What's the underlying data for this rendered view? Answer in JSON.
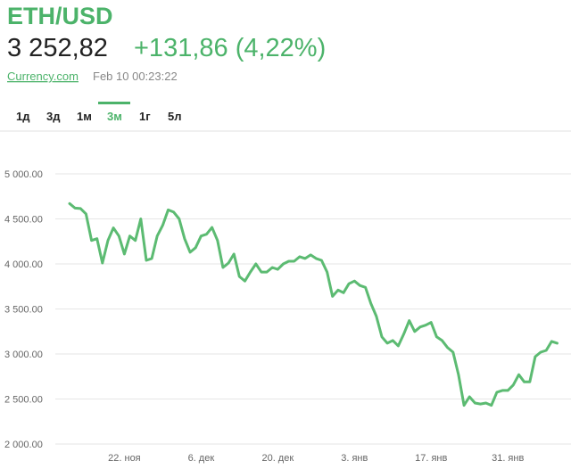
{
  "header": {
    "title": "ETH/USD",
    "price": "3 252,82",
    "change": "+131,86 (4,22%)",
    "source": "Currency.com",
    "timestamp": "Feb 10 00:23:22"
  },
  "tabs": [
    "1д",
    "3д",
    "1м",
    "3м",
    "1г",
    "5л"
  ],
  "chart_data": {
    "type": "line",
    "categories": [
      null,
      null,
      null,
      null,
      null,
      null,
      null,
      null,
      null,
      null,
      "22. ноя",
      null,
      null,
      null,
      null,
      null,
      null,
      null,
      null,
      null,
      null,
      null,
      null,
      null,
      "6. дек",
      null,
      null,
      null,
      null,
      null,
      null,
      null,
      null,
      null,
      null,
      null,
      null,
      null,
      "20. дек",
      null,
      null,
      null,
      null,
      null,
      null,
      null,
      null,
      null,
      null,
      null,
      null,
      null,
      "3. янв",
      null,
      null,
      null,
      null,
      null,
      null,
      null,
      null,
      null,
      null,
      null,
      null,
      null,
      "17. янв",
      null,
      null,
      null,
      null,
      null,
      null,
      null,
      null,
      null,
      null,
      null,
      null,
      null,
      "31. янв",
      null,
      null,
      null,
      null,
      null,
      null,
      null,
      null,
      null
    ],
    "values": [
      4670,
      4620,
      4615,
      4555,
      4260,
      4280,
      4010,
      4260,
      4400,
      4310,
      4110,
      4310,
      4260,
      4500,
      4040,
      4060,
      4310,
      4430,
      4600,
      4575,
      4500,
      4280,
      4130,
      4180,
      4310,
      4330,
      4405,
      4260,
      3960,
      4010,
      4110,
      3860,
      3810,
      3910,
      4000,
      3910,
      3910,
      3960,
      3940,
      4000,
      4030,
      4030,
      4080,
      4060,
      4100,
      4060,
      4040,
      3910,
      3640,
      3710,
      3680,
      3780,
      3810,
      3760,
      3740,
      3560,
      3420,
      3190,
      3120,
      3150,
      3090,
      3220,
      3370,
      3250,
      3300,
      3320,
      3350,
      3190,
      3150,
      3070,
      3020,
      2770,
      2430,
      2525,
      2455,
      2445,
      2455,
      2430,
      2575,
      2595,
      2595,
      2655,
      2770,
      2690,
      2690,
      2970,
      3020,
      3040,
      3140,
      3120
    ],
    "color": "#5cbb72",
    "ylim": [
      2000,
      5000
    ],
    "yticks": [
      {
        "value": 2000,
        "label": "2 000.00"
      },
      {
        "value": 2500,
        "label": "2 500.00"
      },
      {
        "value": 3000,
        "label": "3 000.00"
      },
      {
        "value": 3500,
        "label": "3 500.00"
      },
      {
        "value": 4000,
        "label": "4 000.00"
      },
      {
        "value": 4500,
        "label": "4 500.00"
      },
      {
        "value": 5000,
        "label": "5 000.00"
      }
    ],
    "grid": true
  }
}
